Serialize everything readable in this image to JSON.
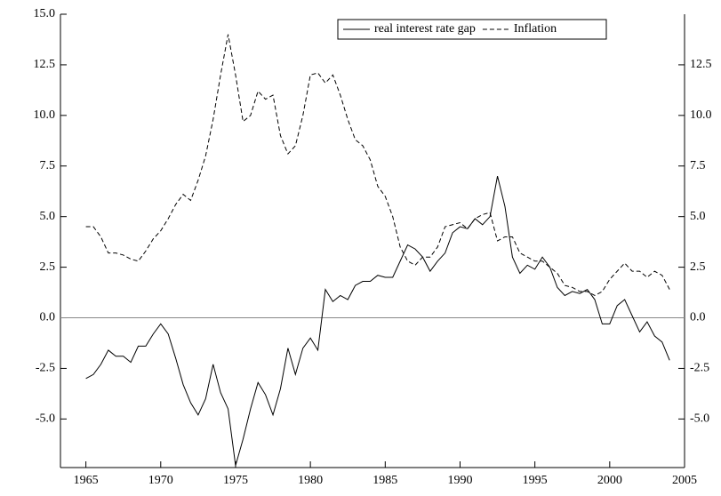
{
  "chart_data": {
    "type": "line",
    "x": [
      1965,
      1965.5,
      1966,
      1966.5,
      1967,
      1967.5,
      1968,
      1968.5,
      1969,
      1969.5,
      1970,
      1970.5,
      1971,
      1971.5,
      1972,
      1972.5,
      1973,
      1973.5,
      1974,
      1974.5,
      1975,
      1975.5,
      1976,
      1976.5,
      1977,
      1977.5,
      1978,
      1978.5,
      1979,
      1979.5,
      1980,
      1980.5,
      1981,
      1981.5,
      1982,
      1982.5,
      1983,
      1983.5,
      1984,
      1984.5,
      1985,
      1985.5,
      1986,
      1986.5,
      1987,
      1987.5,
      1988,
      1988.5,
      1989,
      1989.5,
      1990,
      1990.5,
      1991,
      1991.5,
      1992,
      1992.5,
      1993,
      1993.5,
      1994,
      1994.5,
      1995,
      1995.5,
      1996,
      1996.5,
      1997,
      1997.5,
      1998,
      1998.5,
      1999,
      1999.5,
      2000,
      2000.5,
      2001,
      2001.5,
      2002,
      2002.5,
      2003,
      2003.5,
      2004
    ],
    "series": [
      {
        "name": "real interest rate gap",
        "color": "#000000",
        "dash": "solid",
        "values": [
          -3.0,
          -2.8,
          -2.3,
          -1.6,
          -1.9,
          -1.9,
          -2.2,
          -1.4,
          -1.4,
          -0.8,
          -0.3,
          -0.8,
          -2.0,
          -3.3,
          -4.2,
          -4.8,
          -4.0,
          -2.3,
          -3.7,
          -4.5,
          -7.3,
          -6.0,
          -4.5,
          -3.2,
          -3.8,
          -4.8,
          -3.5,
          -1.5,
          -2.8,
          -1.5,
          -1.0,
          -1.6,
          1.4,
          0.8,
          1.1,
          0.9,
          1.6,
          1.8,
          1.8,
          2.1,
          2.0,
          2.0,
          2.8,
          3.6,
          3.4,
          3.0,
          2.3,
          2.8,
          3.2,
          4.2,
          4.5,
          4.4,
          4.9,
          4.6,
          5.0,
          7.0,
          5.5,
          3.0,
          2.2,
          2.6,
          2.4,
          3.0,
          2.5,
          1.5,
          1.1,
          1.3,
          1.2,
          1.4,
          0.9,
          -0.3,
          -0.3,
          0.6,
          0.9,
          0.1,
          -0.7,
          -0.2,
          -0.9,
          -1.2,
          -2.1
        ]
      },
      {
        "name": "Inflation",
        "color": "#000000",
        "dash": "dashed",
        "values": [
          4.5,
          4.5,
          4.0,
          3.2,
          3.2,
          3.1,
          2.9,
          2.8,
          3.3,
          3.9,
          4.3,
          4.9,
          5.6,
          6.1,
          5.8,
          6.8,
          8.0,
          9.8,
          12.0,
          14.0,
          12.0,
          9.7,
          10.0,
          11.2,
          10.8,
          11.0,
          9.0,
          8.1,
          8.5,
          10.0,
          12.0,
          12.1,
          11.6,
          12.0,
          11.0,
          9.8,
          8.8,
          8.5,
          7.8,
          6.5,
          6.0,
          5.0,
          3.5,
          2.8,
          2.6,
          3.0,
          3.0,
          3.5,
          4.5,
          4.6,
          4.7,
          4.4,
          4.9,
          5.1,
          5.2,
          3.8,
          4.0,
          4.0,
          3.2,
          3.0,
          2.8,
          2.8,
          2.5,
          2.2,
          1.6,
          1.5,
          1.3,
          1.3,
          1.1,
          1.3,
          1.9,
          2.3,
          2.7,
          2.3,
          2.3,
          2.0,
          2.3,
          2.1,
          1.4
        ]
      }
    ],
    "xlim": [
      1963.3,
      2005
    ],
    "xticks": [
      1965,
      1970,
      1975,
      1980,
      1985,
      1990,
      1995,
      2000,
      2005
    ],
    "ylim": [
      -7.4,
      15
    ],
    "yticks": [
      {
        "value": -5,
        "label": "-5.0"
      },
      -2.5,
      {
        "value": 0,
        "label": "0.0"
      },
      2.5,
      {
        "value": 5,
        "label": "5.0"
      },
      7.5,
      {
        "value": 10,
        "label": "10.0"
      },
      12.5,
      {
        "value": 15,
        "label": "15.0"
      }
    ],
    "y2lim": [
      -7.4,
      15
    ],
    "y2ticks": [
      {
        "value": -5,
        "label": "-5.0"
      },
      -2.5,
      {
        "value": 0,
        "label": "0.0"
      },
      2.5,
      {
        "value": 5,
        "label": "5.0"
      },
      7.5,
      {
        "value": 10,
        "label": "10.0"
      },
      12.5
    ],
    "zero_line": true,
    "legend": "top-right"
  }
}
